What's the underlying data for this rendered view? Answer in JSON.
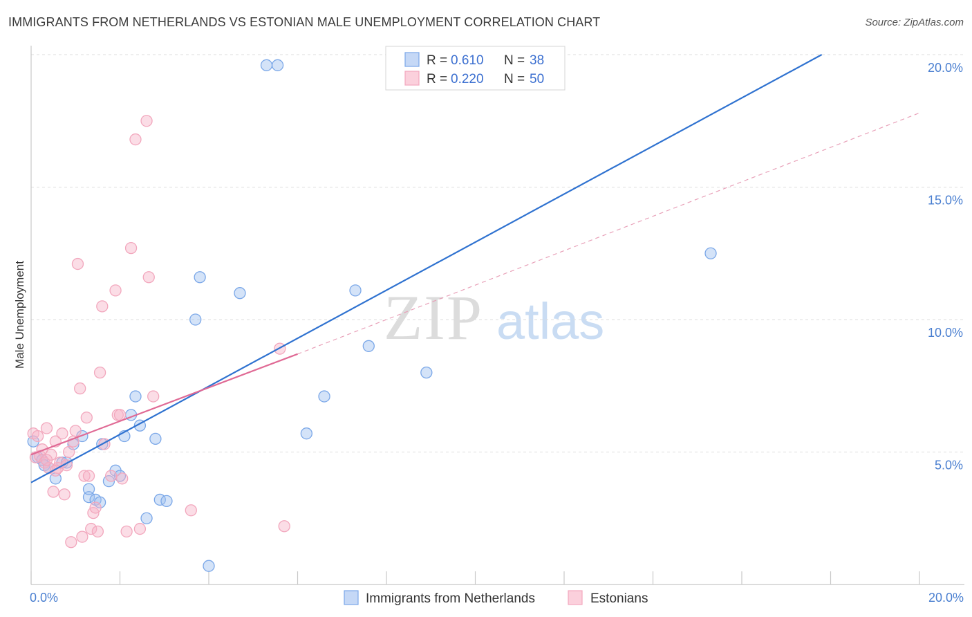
{
  "title": "IMMIGRANTS FROM NETHERLANDS VS ESTONIAN MALE UNEMPLOYMENT CORRELATION CHART",
  "source": "Source: ZipAtlas.com",
  "watermark": {
    "zip": "ZIP",
    "atlas": "atlas"
  },
  "legend": {
    "r_label": "R =",
    "n_label": "N =",
    "rows": [
      {
        "r": "0.610",
        "n": "38"
      },
      {
        "r": "0.220",
        "n": "50"
      }
    ]
  },
  "chart_data": {
    "type": "scatter",
    "title": "IMMIGRANTS FROM NETHERLANDS VS ESTONIAN MALE UNEMPLOYMENT CORRELATION CHART",
    "xlabel": "",
    "ylabel": "Male Unemployment",
    "xlim": [
      0,
      20
    ],
    "ylim": [
      0,
      20
    ],
    "x_tick_labels": [
      "0.0%",
      "20.0%"
    ],
    "y_tick_labels": [
      "5.0%",
      "10.0%",
      "15.0%",
      "20.0%"
    ],
    "y_ticks": [
      5,
      10,
      15,
      20
    ],
    "grid": true,
    "legend_position": "bottom",
    "series": [
      {
        "name": "Immigrants from Netherlands",
        "color": "#7aa7e8",
        "line_color": "#2f72d0",
        "r": 0.61,
        "n": 38,
        "trend": {
          "x0": 0.0,
          "y0": 3.85,
          "x1": 17.8,
          "y1": 20.0,
          "style": "solid"
        },
        "points": [
          [
            0.05,
            5.4
          ],
          [
            0.15,
            4.8
          ],
          [
            0.25,
            4.7
          ],
          [
            0.3,
            4.5
          ],
          [
            0.4,
            4.4
          ],
          [
            0.55,
            4.0
          ],
          [
            0.7,
            4.6
          ],
          [
            0.8,
            4.6
          ],
          [
            0.95,
            5.3
          ],
          [
            1.15,
            5.6
          ],
          [
            1.3,
            3.3
          ],
          [
            1.3,
            3.6
          ],
          [
            1.45,
            3.2
          ],
          [
            1.55,
            3.1
          ],
          [
            1.6,
            5.3
          ],
          [
            1.75,
            3.9
          ],
          [
            1.9,
            4.3
          ],
          [
            2.0,
            4.1
          ],
          [
            2.1,
            5.6
          ],
          [
            2.25,
            6.4
          ],
          [
            2.35,
            7.1
          ],
          [
            2.45,
            6.0
          ],
          [
            2.6,
            2.5
          ],
          [
            2.8,
            5.5
          ],
          [
            2.9,
            3.2
          ],
          [
            3.05,
            3.15
          ],
          [
            3.7,
            10.0
          ],
          [
            3.8,
            11.6
          ],
          [
            4.0,
            0.7
          ],
          [
            4.7,
            11.0
          ],
          [
            5.3,
            19.6
          ],
          [
            5.55,
            19.6
          ],
          [
            6.2,
            5.7
          ],
          [
            6.6,
            7.1
          ],
          [
            7.3,
            11.1
          ],
          [
            7.6,
            9.0
          ],
          [
            8.9,
            8.0
          ],
          [
            15.3,
            12.5
          ]
        ]
      },
      {
        "name": "Estonians",
        "color": "#f2a7bd",
        "line_color": "#e06a95",
        "r": 0.22,
        "n": 50,
        "trend": {
          "x0": 0.0,
          "y0": 4.9,
          "x1": 6.0,
          "y1": 8.7,
          "style": "solid",
          "dashed_extension_to": [
            20.0,
            17.8
          ]
        },
        "points": [
          [
            0.05,
            5.7
          ],
          [
            0.1,
            4.8
          ],
          [
            0.2,
            4.85
          ],
          [
            0.25,
            5.1
          ],
          [
            0.3,
            4.6
          ],
          [
            0.35,
            5.9
          ],
          [
            0.4,
            4.4
          ],
          [
            0.45,
            4.9
          ],
          [
            0.5,
            3.5
          ],
          [
            0.55,
            5.4
          ],
          [
            0.6,
            4.4
          ],
          [
            0.65,
            4.6
          ],
          [
            0.7,
            5.7
          ],
          [
            0.75,
            3.4
          ],
          [
            0.8,
            4.5
          ],
          [
            0.85,
            5.0
          ],
          [
            0.9,
            1.6
          ],
          [
            0.95,
            5.4
          ],
          [
            1.0,
            5.8
          ],
          [
            1.05,
            12.1
          ],
          [
            1.1,
            7.4
          ],
          [
            1.15,
            1.8
          ],
          [
            1.2,
            4.1
          ],
          [
            1.25,
            6.3
          ],
          [
            1.3,
            4.1
          ],
          [
            1.35,
            2.1
          ],
          [
            1.4,
            2.7
          ],
          [
            1.45,
            2.9
          ],
          [
            1.5,
            2.0
          ],
          [
            1.55,
            8.0
          ],
          [
            1.6,
            10.5
          ],
          [
            1.65,
            5.3
          ],
          [
            1.8,
            4.1
          ],
          [
            1.9,
            11.1
          ],
          [
            1.95,
            6.4
          ],
          [
            2.05,
            4.0
          ],
          [
            2.15,
            2.0
          ],
          [
            2.25,
            12.7
          ],
          [
            2.35,
            16.8
          ],
          [
            2.45,
            2.1
          ],
          [
            2.6,
            17.5
          ],
          [
            2.65,
            11.6
          ],
          [
            2.75,
            7.1
          ],
          [
            3.6,
            2.8
          ],
          [
            5.6,
            8.9
          ],
          [
            5.7,
            2.2
          ],
          [
            2.0,
            6.4
          ],
          [
            0.15,
            5.6
          ],
          [
            0.35,
            4.7
          ],
          [
            0.55,
            4.3
          ]
        ]
      }
    ]
  }
}
